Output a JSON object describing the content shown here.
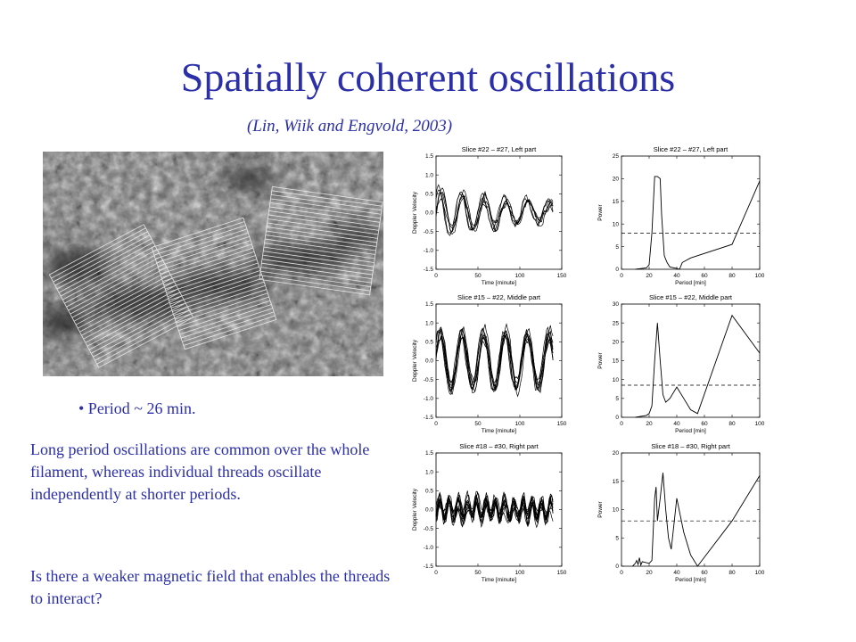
{
  "slide": {
    "title": "Spatially coherent oscillations",
    "citation": "(Lin, Wiik and Engvold, 2003)",
    "bullet": "• Period ~ 26 min.",
    "paragraph1": "Long period oscillations are common over the whole filament, whereas individual threads oscillate independently at shorter periods.",
    "paragraph2": "Is there a weaker magnetic field that enables the threads to interact?"
  },
  "colors": {
    "text": "#2b2fa8",
    "plot": "#000000"
  },
  "chart_data": [
    {
      "type": "line",
      "title": "Slice #22 – #27, Left part",
      "xlabel": "Time [minute]",
      "ylabel": "Doppler Velocity",
      "xlim": [
        0,
        150
      ],
      "ylim": [
        -1.5,
        1.5
      ],
      "xticks": [
        0,
        50,
        100,
        150
      ],
      "yticks": [
        -1.5,
        -1.0,
        -0.5,
        0.0,
        0.5,
        1.0,
        1.5
      ],
      "curve": {
        "count": 6,
        "tmax": 140,
        "amp": 0.55,
        "period": 26,
        "noise": 0.15,
        "decay": 0.006
      }
    },
    {
      "type": "line",
      "title": "Slice #22 – #27, Left part",
      "xlabel": "Period [min]",
      "ylabel": "Power",
      "xlim": [
        0,
        100
      ],
      "ylim": [
        0,
        25
      ],
      "xticks": [
        0,
        20,
        40,
        60,
        80,
        100
      ],
      "yticks": [
        0,
        5,
        10,
        15,
        20,
        25
      ],
      "ref_level": 8,
      "x": [
        10,
        18,
        20,
        22,
        24,
        26,
        28,
        29,
        31,
        33,
        35,
        40,
        42,
        44,
        50,
        80,
        100
      ],
      "y": [
        0,
        0.3,
        1,
        8,
        20.5,
        20.5,
        20,
        12,
        3,
        1.5,
        0.5,
        0.2,
        0,
        1.5,
        2.5,
        5.5,
        19.5
      ]
    },
    {
      "type": "line",
      "title": "Slice #15 – #22, Middle part",
      "xlabel": "Time [minute]",
      "ylabel": "Doppler Velocity",
      "xlim": [
        0,
        150
      ],
      "ylim": [
        -1.5,
        1.5
      ],
      "xticks": [
        0,
        50,
        100,
        150
      ],
      "yticks": [
        -1.5,
        -1.0,
        -0.5,
        0.0,
        0.5,
        1.0,
        1.5
      ],
      "curve": {
        "count": 8,
        "tmax": 140,
        "amp": 0.7,
        "period": 26,
        "noise": 0.2,
        "decay": 0.0
      }
    },
    {
      "type": "line",
      "title": "Slice #15 – #22, Middle part",
      "xlabel": "Period [min]",
      "ylabel": "Power",
      "xlim": [
        0,
        100
      ],
      "ylim": [
        0,
        30
      ],
      "xticks": [
        0,
        20,
        40,
        60,
        80,
        100
      ],
      "yticks": [
        0,
        5,
        10,
        15,
        20,
        25,
        30
      ],
      "ref_level": 8.5,
      "x": [
        10,
        18,
        20,
        22,
        24,
        26,
        28,
        30,
        32,
        35,
        40,
        45,
        50,
        55,
        80,
        100
      ],
      "y": [
        0,
        0.5,
        1,
        3,
        15,
        25,
        15,
        6,
        4,
        5,
        8,
        5,
        2,
        1,
        27,
        17
      ]
    },
    {
      "type": "line",
      "title": "Slice #18 – #30, Right part",
      "xlabel": "Time [minute]",
      "ylabel": "Doppler Velocity",
      "xlim": [
        0,
        150
      ],
      "ylim": [
        -1.5,
        1.5
      ],
      "xticks": [
        0,
        50,
        100,
        150
      ],
      "yticks": [
        -1.5,
        -1.0,
        -0.5,
        0.0,
        0.5,
        1.0,
        1.5
      ],
      "curve": {
        "count": 12,
        "tmax": 140,
        "amp": 0.2,
        "period": 11,
        "noise": 0.25,
        "decay": 0.0
      }
    },
    {
      "type": "line",
      "title": "Slice #18 – #30, Right part",
      "xlabel": "Period [min]",
      "ylabel": "Power",
      "xlim": [
        0,
        100
      ],
      "ylim": [
        0,
        20
      ],
      "xticks": [
        0,
        20,
        40,
        60,
        80,
        100
      ],
      "yticks": [
        0,
        5,
        10,
        15,
        20
      ],
      "ref_level": 8,
      "x": [
        8,
        10,
        11,
        12,
        13,
        14,
        15,
        20,
        22,
        24,
        25,
        26,
        28,
        30,
        32,
        34,
        36,
        40,
        45,
        50,
        55,
        80,
        100
      ],
      "y": [
        0,
        0.5,
        1,
        0.3,
        1.5,
        0.2,
        0.8,
        0.5,
        1,
        12,
        14,
        8,
        12,
        16.5,
        10,
        5,
        3,
        12,
        6,
        2,
        0,
        8,
        16
      ]
    }
  ]
}
